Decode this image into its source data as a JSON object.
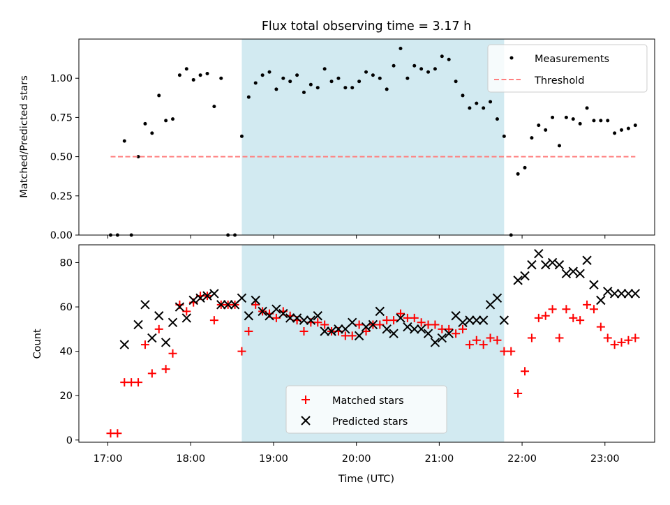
{
  "chart_data": [
    {
      "type": "scatter",
      "title": "Flux total observing time = 3.17 h",
      "xlabel": "",
      "ylabel": "Matched/Predicted stars",
      "xlim": [
        "16:39",
        "23:36"
      ],
      "ylim": [
        0,
        1.25
      ],
      "yticks": [
        "0.00",
        "0.25",
        "0.50",
        "0.75",
        "1.00"
      ],
      "shaded_region": {
        "start": "18:37",
        "end": "21:47",
        "color": "#add8e6"
      },
      "legend": {
        "position": "top-right",
        "entries": [
          "Measurements",
          "Threshold"
        ]
      },
      "series": [
        {
          "name": "Measurements",
          "marker": "dot",
          "color": "#000000",
          "x": [
            "17:02",
            "17:07",
            "17:12",
            "17:17",
            "17:22",
            "17:27",
            "17:32",
            "17:37",
            "17:42",
            "17:47",
            "17:52",
            "17:57",
            "18:02",
            "18:07",
            "18:12",
            "18:17",
            "18:22",
            "18:27",
            "18:32",
            "18:37",
            "18:42",
            "18:47",
            "18:52",
            "18:57",
            "19:02",
            "19:07",
            "19:12",
            "19:17",
            "19:22",
            "19:27",
            "19:32",
            "19:37",
            "19:42",
            "19:47",
            "19:52",
            "19:57",
            "20:02",
            "20:07",
            "20:12",
            "20:17",
            "20:22",
            "20:27",
            "20:32",
            "20:37",
            "20:42",
            "20:47",
            "20:52",
            "20:57",
            "21:02",
            "21:07",
            "21:12",
            "21:17",
            "21:22",
            "21:27",
            "21:32",
            "21:37",
            "21:42",
            "21:47",
            "21:52",
            "21:57",
            "22:02",
            "22:07",
            "22:12",
            "22:17",
            "22:22",
            "22:27",
            "22:32",
            "22:37",
            "22:42",
            "22:47",
            "22:52",
            "22:57",
            "23:02",
            "23:07",
            "23:12",
            "23:17",
            "23:22"
          ],
          "y": [
            0.0,
            0.0,
            0.6,
            0.0,
            0.5,
            0.71,
            0.65,
            0.89,
            0.73,
            0.74,
            1.02,
            1.06,
            0.99,
            1.02,
            1.03,
            0.82,
            1.0,
            0.0,
            0.0,
            0.63,
            0.88,
            0.97,
            1.02,
            1.04,
            0.93,
            1.0,
            0.98,
            1.02,
            0.91,
            0.96,
            0.94,
            1.06,
            0.98,
            1.0,
            0.94,
            0.94,
            0.98,
            1.04,
            1.02,
            1.0,
            0.93,
            1.08,
            1.19,
            1.0,
            1.08,
            1.06,
            1.04,
            1.06,
            1.14,
            1.12,
            0.98,
            0.89,
            0.81,
            0.84,
            0.81,
            0.85,
            0.74,
            0.63,
            0.0,
            0.39,
            0.43,
            0.62,
            0.7,
            0.67,
            0.75,
            0.57,
            0.75,
            0.74,
            0.71,
            0.81,
            0.73,
            0.73,
            0.73,
            0.65,
            0.67,
            0.68,
            0.7
          ]
        },
        {
          "name": "Threshold",
          "style": "dashed",
          "color": "#ff8080",
          "x": [
            "17:02",
            "23:22"
          ],
          "y": [
            0.5,
            0.5
          ]
        }
      ]
    },
    {
      "type": "scatter",
      "title": "",
      "xlabel": "Time (UTC)",
      "ylabel": "Count",
      "xlim": [
        "16:39",
        "23:36"
      ],
      "ylim": [
        -1,
        88
      ],
      "yticks": [
        "0",
        "20",
        "40",
        "60",
        "80"
      ],
      "xticks": [
        "17:00",
        "18:00",
        "19:00",
        "20:00",
        "21:00",
        "22:00",
        "23:00"
      ],
      "shaded_region": {
        "start": "18:37",
        "end": "21:47",
        "color": "#add8e6"
      },
      "legend": {
        "position": "bottom-center",
        "entries": [
          "Matched stars",
          "Predicted stars"
        ]
      },
      "series": [
        {
          "name": "Matched stars",
          "marker": "plus",
          "color": "#ff0000",
          "x": [
            "17:02",
            "17:07",
            "17:12",
            "17:17",
            "17:22",
            "17:27",
            "17:32",
            "17:37",
            "17:42",
            "17:47",
            "17:52",
            "17:57",
            "18:02",
            "18:07",
            "18:12",
            "18:17",
            "18:22",
            "18:27",
            "18:32",
            "18:37",
            "18:42",
            "18:47",
            "18:52",
            "18:57",
            "19:02",
            "19:07",
            "19:12",
            "19:17",
            "19:22",
            "19:27",
            "19:32",
            "19:37",
            "19:42",
            "19:47",
            "19:52",
            "19:57",
            "20:02",
            "20:07",
            "20:12",
            "20:17",
            "20:22",
            "20:27",
            "20:32",
            "20:37",
            "20:42",
            "20:47",
            "20:52",
            "20:57",
            "21:02",
            "21:07",
            "21:12",
            "21:17",
            "21:22",
            "21:27",
            "21:32",
            "21:37",
            "21:42",
            "21:47",
            "21:52",
            "21:57",
            "22:02",
            "22:07",
            "22:12",
            "22:17",
            "22:22",
            "22:27",
            "22:32",
            "22:37",
            "22:42",
            "22:47",
            "22:52",
            "22:57",
            "23:02",
            "23:07",
            "23:12",
            "23:17",
            "23:22"
          ],
          "y": [
            3,
            3,
            26,
            26,
            26,
            43,
            30,
            50,
            32,
            39,
            61,
            58,
            62,
            65,
            65,
            54,
            61,
            61,
            61,
            40,
            49,
            61,
            58,
            57,
            55,
            58,
            56,
            54,
            49,
            53,
            53,
            52,
            49,
            49,
            47,
            47,
            52,
            49,
            52,
            52,
            54,
            54,
            57,
            55,
            55,
            53,
            52,
            52,
            50,
            50,
            48,
            50,
            43,
            45,
            43,
            46,
            45,
            40,
            40,
            21,
            31,
            46,
            55,
            56,
            59,
            46,
            59,
            55,
            54,
            61,
            59,
            51,
            46,
            43,
            44,
            45,
            46
          ]
        },
        {
          "name": "Predicted stars",
          "marker": "cross",
          "color": "#000000",
          "x": [
            "17:12",
            "17:22",
            "17:27",
            "17:32",
            "17:37",
            "17:42",
            "17:47",
            "17:52",
            "17:57",
            "18:02",
            "18:07",
            "18:12",
            "18:17",
            "18:22",
            "18:27",
            "18:32",
            "18:37",
            "18:42",
            "18:47",
            "18:52",
            "18:57",
            "19:02",
            "19:07",
            "19:12",
            "19:17",
            "19:22",
            "19:27",
            "19:32",
            "19:37",
            "19:42",
            "19:47",
            "19:52",
            "19:57",
            "20:02",
            "20:07",
            "20:12",
            "20:17",
            "20:22",
            "20:27",
            "20:32",
            "20:37",
            "20:42",
            "20:47",
            "20:52",
            "20:57",
            "21:02",
            "21:07",
            "21:12",
            "21:17",
            "21:22",
            "21:27",
            "21:32",
            "21:37",
            "21:42",
            "21:47",
            "21:57",
            "22:02",
            "22:07",
            "22:12",
            "22:17",
            "22:22",
            "22:27",
            "22:32",
            "22:37",
            "22:42",
            "22:47",
            "22:52",
            "22:57",
            "23:02",
            "23:07",
            "23:12",
            "23:17",
            "23:22"
          ],
          "y": [
            43,
            52,
            61,
            46,
            56,
            44,
            53,
            60,
            55,
            63,
            64,
            65,
            66,
            61,
            61,
            61,
            64,
            56,
            63,
            58,
            56,
            59,
            57,
            55,
            55,
            54,
            54,
            56,
            49,
            49,
            50,
            50,
            53,
            47,
            51,
            52,
            58,
            50,
            48,
            55,
            51,
            50,
            50,
            48,
            44,
            46,
            48,
            56,
            53,
            54,
            54,
            54,
            61,
            64,
            54,
            72,
            74,
            79,
            84,
            79,
            80,
            79,
            75,
            76,
            75,
            81,
            70,
            63,
            67,
            66,
            66,
            66,
            66
          ]
        }
      ]
    }
  ]
}
